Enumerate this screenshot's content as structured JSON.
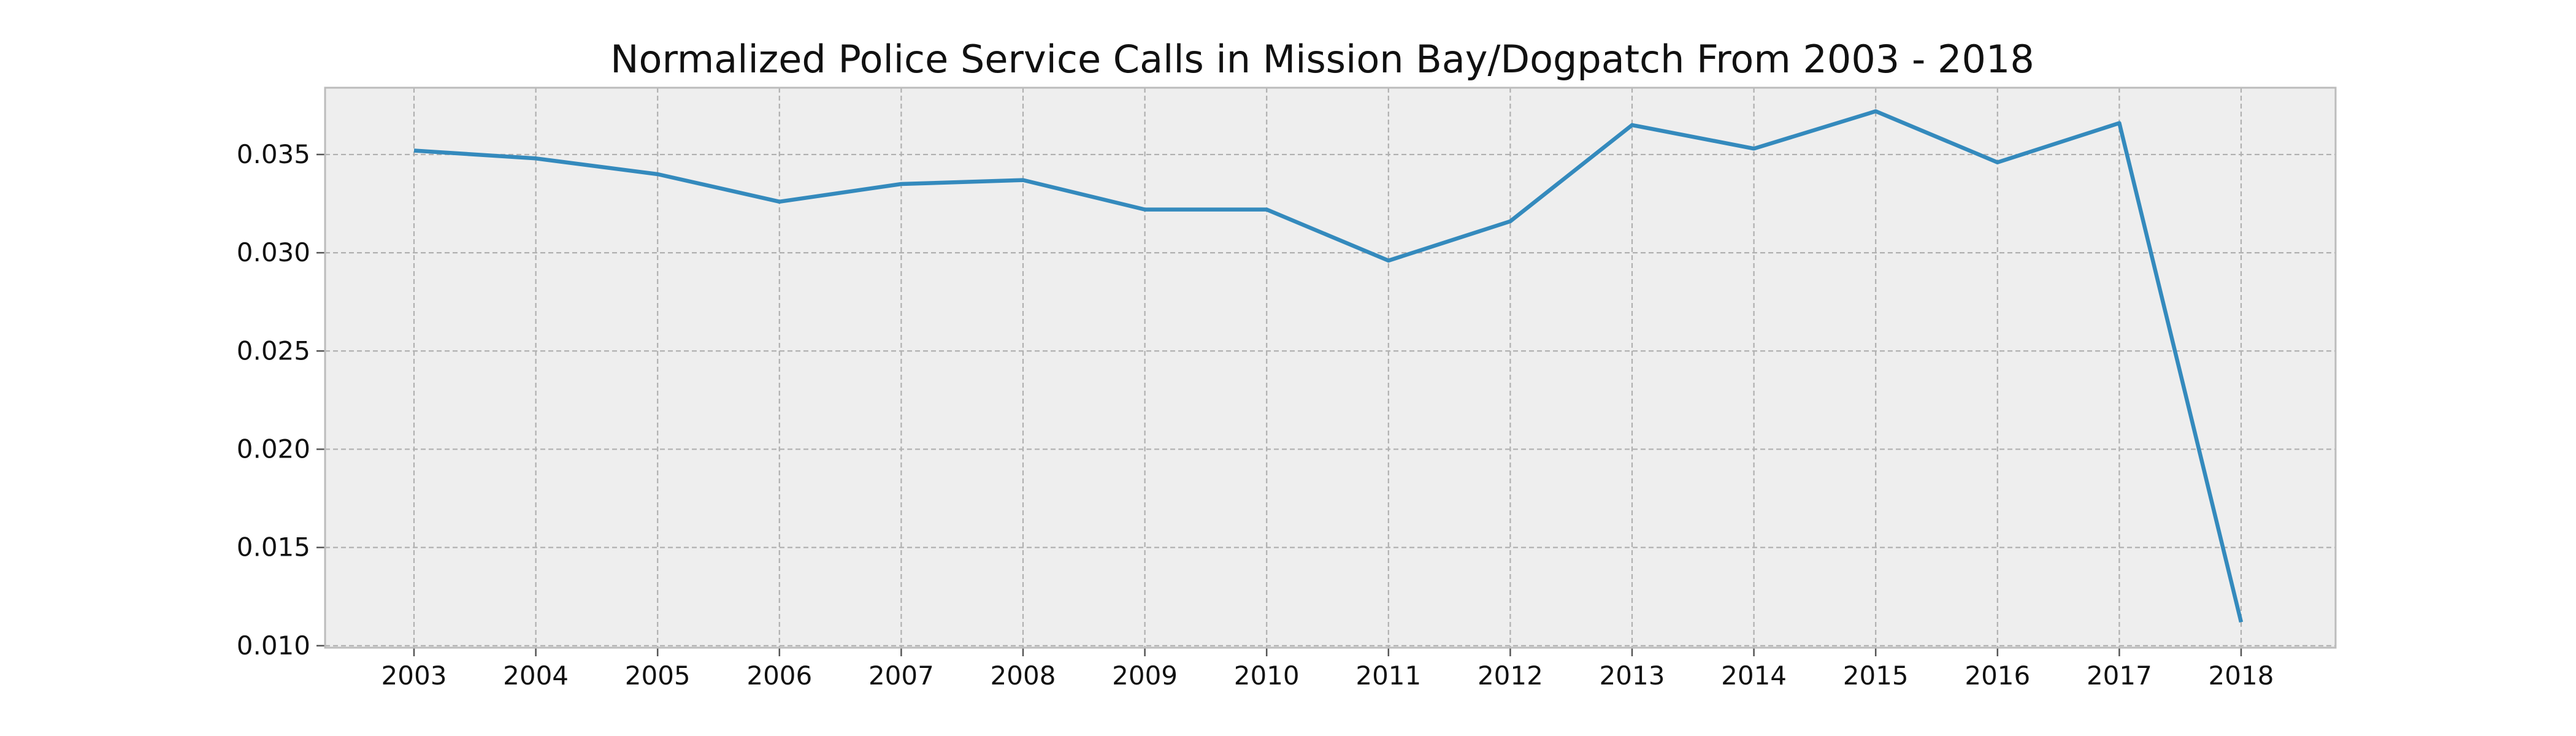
{
  "chart_data": {
    "type": "line",
    "title": "Normalized Police Service Calls in Mission Bay/Dogpatch From 2003 - 2018",
    "xlabel": "",
    "ylabel": "",
    "categories": [
      "2003",
      "2004",
      "2005",
      "2006",
      "2007",
      "2008",
      "2009",
      "2010",
      "2011",
      "2012",
      "2013",
      "2014",
      "2015",
      "2016",
      "2017",
      "2018"
    ],
    "series": [
      {
        "values": [
          0.0352,
          0.0348,
          0.034,
          0.0326,
          0.0335,
          0.0337,
          0.0322,
          0.0322,
          0.0296,
          0.0316,
          0.0365,
          0.0353,
          0.0372,
          0.0346,
          0.0366,
          0.0112
        ]
      }
    ],
    "ylim": [
      0.0099,
      0.0384
    ],
    "yticks": [
      0.01,
      0.015,
      0.02,
      0.025,
      0.03,
      0.035
    ],
    "ytick_labels": [
      "0.010",
      "0.015",
      "0.020",
      "0.025",
      "0.030",
      "0.035"
    ],
    "grid": true,
    "legend": "none",
    "colors": {
      "line": "#348abd",
      "plot_background": "#eeeeee",
      "grid": "#b0b0b0",
      "frame": "#bcbcbc"
    }
  }
}
